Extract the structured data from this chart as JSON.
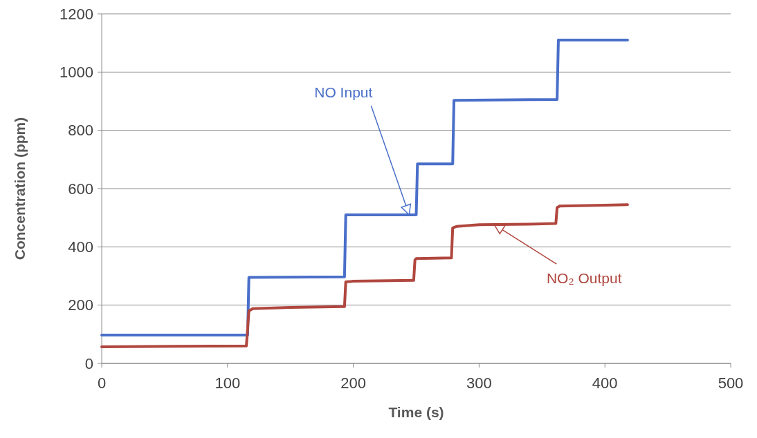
{
  "chart_data": {
    "type": "line",
    "xlabel": "Time (s)",
    "ylabel": "Concentration (ppm)",
    "xlim": [
      0,
      500
    ],
    "xticks": [
      0,
      100,
      200,
      300,
      400,
      500
    ],
    "ylim": [
      0,
      1200
    ],
    "yticks": [
      0,
      200,
      400,
      600,
      800,
      1000,
      1200
    ],
    "grid": "y",
    "marker": "none",
    "line_style": "solid",
    "series": [
      {
        "name": "NO Input",
        "color": "#4a6fc9",
        "x": [
          0,
          116,
          117,
          193,
          194,
          250,
          251,
          279,
          280,
          362,
          363,
          418
        ],
        "values": [
          97,
          97,
          295,
          297,
          510,
          510,
          685,
          685,
          903,
          906,
          1110,
          1110
        ]
      },
      {
        "name": "NO₂ Output",
        "color": "#b0473f",
        "x": [
          0,
          115,
          117,
          120,
          150,
          193,
          194,
          200,
          248,
          249,
          250,
          278,
          279,
          282,
          300,
          340,
          361,
          362,
          364,
          400,
          418
        ],
        "values": [
          57,
          60,
          180,
          188,
          192,
          195,
          280,
          282,
          285,
          355,
          360,
          362,
          465,
          470,
          476,
          478,
          480,
          535,
          540,
          543,
          545
        ]
      }
    ]
  }
}
